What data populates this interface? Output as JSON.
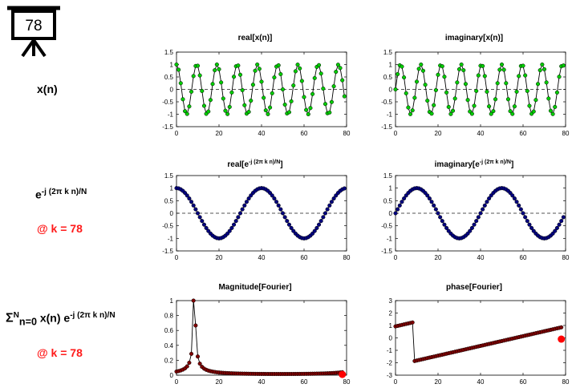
{
  "frame_counter": "78",
  "row_labels": {
    "xn": "x(n)",
    "kernel": {
      "base": "e",
      "sup": "-j (2π k n)/N"
    },
    "kernel_k": "@ k = 78",
    "sum": {
      "sigma": "Σ",
      "sup": "N",
      "sub": "n=0",
      "mid": "x(n) e",
      "sup2": "-j (2π k n)/N"
    },
    "sum_k": "@ k = 78"
  },
  "titles": {
    "real_x": "real[x(n)]",
    "imag_x": "imaginary[x(n)]",
    "real_e": {
      "base": "real[e",
      "sup": "-j (2π k n)/N",
      "end": "]"
    },
    "imag_e": {
      "base": "imaginary[e",
      "sup": "-j (2π k n)/N",
      "end": "]"
    },
    "mag": "Magnitude[Fourier]",
    "phase": "phase[Fourier]"
  },
  "colors": {
    "green": "#00cc00",
    "navy": "#00007f",
    "maroon": "#7f0000",
    "red": "#ff0000",
    "highlight_red": "#ff1a1a"
  },
  "chart_data": [
    {
      "id": "real_x",
      "type": "line",
      "n": 80,
      "xlim": [
        0,
        80
      ],
      "ylim": [
        -1.5,
        1.5
      ],
      "xticks": [
        0,
        20,
        40,
        60,
        80
      ],
      "yticks": [
        -1.5,
        -1,
        -0.5,
        0,
        0.5,
        1,
        1.5
      ],
      "signal": "cos(2π·8.4·n/80)",
      "marker_color": "green",
      "zero_line": true
    },
    {
      "id": "imag_x",
      "type": "line",
      "n": 80,
      "xlim": [
        0,
        80
      ],
      "ylim": [
        -1.5,
        1.5
      ],
      "xticks": [
        0,
        20,
        40,
        60,
        80
      ],
      "yticks": [
        -1.5,
        -1,
        -0.5,
        0,
        0.5,
        1,
        1.5
      ],
      "signal": "sin(2π·8.4·n/80)",
      "marker_color": "green",
      "zero_line": true
    },
    {
      "id": "real_e",
      "type": "line",
      "n": 80,
      "xlim": [
        0,
        80
      ],
      "ylim": [
        -1.5,
        1.5
      ],
      "xticks": [
        0,
        20,
        40,
        60,
        80
      ],
      "yticks": [
        -1.5,
        -1,
        -0.5,
        0,
        0.5,
        1,
        1.5
      ],
      "signal": "cos(2π·78·n/80)",
      "marker_color": "navy",
      "zero_line": true
    },
    {
      "id": "imag_e",
      "type": "line",
      "n": 80,
      "xlim": [
        0,
        80
      ],
      "ylim": [
        -1.5,
        1.5
      ],
      "xticks": [
        0,
        20,
        40,
        60,
        80
      ],
      "yticks": [
        -1.5,
        -1,
        -0.5,
        0,
        0.5,
        1,
        1.5
      ],
      "signal": "-sin(2π·78·n/80)",
      "marker_color": "navy",
      "zero_line": true
    },
    {
      "id": "mag",
      "type": "line",
      "n": 79,
      "xlim": [
        0,
        80
      ],
      "ylim": [
        0,
        1
      ],
      "xticks": [
        0,
        20,
        40,
        60,
        80
      ],
      "yticks": [
        0,
        0.2,
        0.4,
        0.6,
        0.8,
        1
      ],
      "signal": "normalized |DFT| of x(n)",
      "peak_at": 8,
      "marker_color": "maroon",
      "current_point": {
        "k": 78,
        "y": 0.01
      }
    },
    {
      "id": "phase",
      "type": "line",
      "n": 79,
      "xlim": [
        0,
        80
      ],
      "ylim": [
        -3,
        3
      ],
      "xticks": [
        0,
        20,
        40,
        60,
        80
      ],
      "yticks": [
        -3,
        -2,
        -1,
        0,
        1,
        2,
        3
      ],
      "signal": "phase of DFT of x(n)",
      "marker_color": "maroon",
      "current_point": {
        "k": 78,
        "y": -0.1
      }
    }
  ]
}
